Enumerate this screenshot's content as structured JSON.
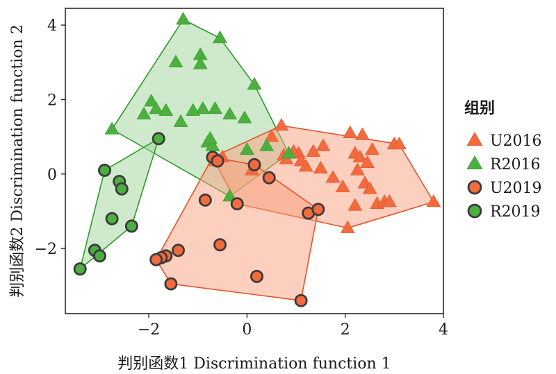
{
  "chart_data": {
    "type": "scatter",
    "title": "",
    "xlabel": "判别函数1 Discrimination function 1",
    "ylabel": "判别函数2 Discrimination function 2",
    "xlim": [
      -3.7,
      4.0
    ],
    "ylim": [
      -3.75,
      4.45
    ],
    "xticks": [
      -2,
      0,
      2,
      4
    ],
    "yticks": [
      -2,
      0,
      2,
      4
    ],
    "grid": false,
    "legend": {
      "title": "组别",
      "placement": "outside-right"
    },
    "colors": {
      "orange_fill": "#f9a07e",
      "orange_marker": "#f26a3d",
      "orange_edge": "#e4532a",
      "green_fill": "#9fd39a",
      "green_marker": "#4caf3f",
      "green_edge": "#2e9a28",
      "circle_outline": "#3b3b3b"
    },
    "series": [
      {
        "name": "U2016",
        "marker": "triangle",
        "color": "orange",
        "points": [
          [
            0.7,
            1.3
          ],
          [
            0.5,
            1.0
          ],
          [
            0.75,
            0.5
          ],
          [
            0.8,
            0.4
          ],
          [
            1.05,
            0.55
          ],
          [
            1.2,
            0.2
          ],
          [
            1.35,
            0.6
          ],
          [
            1.55,
            0.75
          ],
          [
            1.5,
            0.15
          ],
          [
            1.75,
            -0.1
          ],
          [
            1.95,
            -0.35
          ],
          [
            2.1,
            1.1
          ],
          [
            2.2,
            0.55
          ],
          [
            2.25,
            0.1
          ],
          [
            2.3,
            0.45
          ],
          [
            2.35,
            1.05
          ],
          [
            2.4,
            -0.25
          ],
          [
            2.45,
            0.3
          ],
          [
            2.5,
            -0.4
          ],
          [
            2.55,
            0.65
          ],
          [
            2.65,
            -0.8
          ],
          [
            2.8,
            -0.75
          ],
          [
            2.9,
            -0.75
          ],
          [
            3.0,
            0.8
          ],
          [
            3.1,
            0.8
          ],
          [
            2.2,
            -0.85
          ],
          [
            2.05,
            -1.45
          ],
          [
            1.1,
            0.35
          ],
          [
            -0.5,
            0.45
          ],
          [
            0.1,
            0.1
          ],
          [
            0.95,
            0.6
          ],
          [
            3.8,
            -0.75
          ],
          [
            -0.65,
            0.35
          ]
        ]
      },
      {
        "name": "R2016",
        "marker": "triangle",
        "color": "green",
        "points": [
          [
            -1.3,
            4.15
          ],
          [
            -0.55,
            3.65
          ],
          [
            -0.95,
            3.2
          ],
          [
            -1.45,
            3.0
          ],
          [
            -0.95,
            2.95
          ],
          [
            0.15,
            2.4
          ],
          [
            -1.95,
            1.95
          ],
          [
            -1.85,
            1.75
          ],
          [
            -1.65,
            1.7
          ],
          [
            -2.1,
            1.6
          ],
          [
            -0.9,
            1.75
          ],
          [
            -0.65,
            1.75
          ],
          [
            -1.1,
            1.7
          ],
          [
            -0.35,
            1.6
          ],
          [
            -0.05,
            1.5
          ],
          [
            -1.35,
            1.4
          ],
          [
            -0.8,
            0.85
          ],
          [
            -0.7,
            0.75
          ],
          [
            0.4,
            0.75
          ],
          [
            0.0,
            0.65
          ],
          [
            -2.75,
            1.2
          ],
          [
            0.85,
            0.55
          ],
          [
            -0.35,
            -0.6
          ],
          [
            -0.75,
            0.95
          ]
        ]
      },
      {
        "name": "U2019",
        "marker": "circle",
        "color": "orange",
        "points": [
          [
            -0.7,
            0.45
          ],
          [
            -0.6,
            0.35
          ],
          [
            0.15,
            0.25
          ],
          [
            0.45,
            -0.1
          ],
          [
            -0.85,
            -0.7
          ],
          [
            -0.2,
            -0.8
          ],
          [
            1.25,
            -1.05
          ],
          [
            1.45,
            -0.95
          ],
          [
            -0.55,
            -1.9
          ],
          [
            -1.4,
            -2.05
          ],
          [
            -1.65,
            -2.2
          ],
          [
            -1.75,
            -2.25
          ],
          [
            -1.85,
            -2.3
          ],
          [
            -1.55,
            -2.95
          ],
          [
            0.2,
            -2.75
          ],
          [
            1.1,
            -3.4
          ]
        ]
      },
      {
        "name": "R2019",
        "marker": "circle",
        "color": "green",
        "points": [
          [
            -1.8,
            0.95
          ],
          [
            -2.9,
            0.1
          ],
          [
            -2.6,
            -0.2
          ],
          [
            -2.55,
            -0.4
          ],
          [
            -2.75,
            -1.2
          ],
          [
            -2.35,
            -1.4
          ],
          [
            -3.1,
            -2.05
          ],
          [
            -3.0,
            -2.2
          ],
          [
            -3.4,
            -2.55
          ]
        ]
      }
    ],
    "hulls": [
      {
        "series": "R2016",
        "color": "green",
        "vertices": [
          [
            -1.3,
            4.15
          ],
          [
            -0.55,
            3.65
          ],
          [
            0.15,
            2.4
          ],
          [
            0.85,
            0.55
          ],
          [
            -0.35,
            -0.6
          ],
          [
            -2.75,
            1.2
          ]
        ]
      },
      {
        "series": "U2016",
        "color": "orange",
        "vertices": [
          [
            0.7,
            1.3
          ],
          [
            3.1,
            0.8
          ],
          [
            3.8,
            -0.75
          ],
          [
            2.05,
            -1.45
          ],
          [
            -0.2,
            -0.8
          ],
          [
            -0.7,
            0.45
          ]
        ]
      },
      {
        "series": "U2019",
        "color": "orange",
        "vertices": [
          [
            -0.7,
            0.45
          ],
          [
            0.15,
            0.25
          ],
          [
            1.45,
            -0.95
          ],
          [
            1.1,
            -3.4
          ],
          [
            -1.55,
            -2.95
          ],
          [
            -1.85,
            -2.3
          ]
        ]
      },
      {
        "series": "R2019",
        "color": "green",
        "vertices": [
          [
            -1.8,
            0.95
          ],
          [
            -2.35,
            -1.4
          ],
          [
            -3.4,
            -2.55
          ],
          [
            -2.9,
            0.1
          ]
        ]
      }
    ]
  }
}
